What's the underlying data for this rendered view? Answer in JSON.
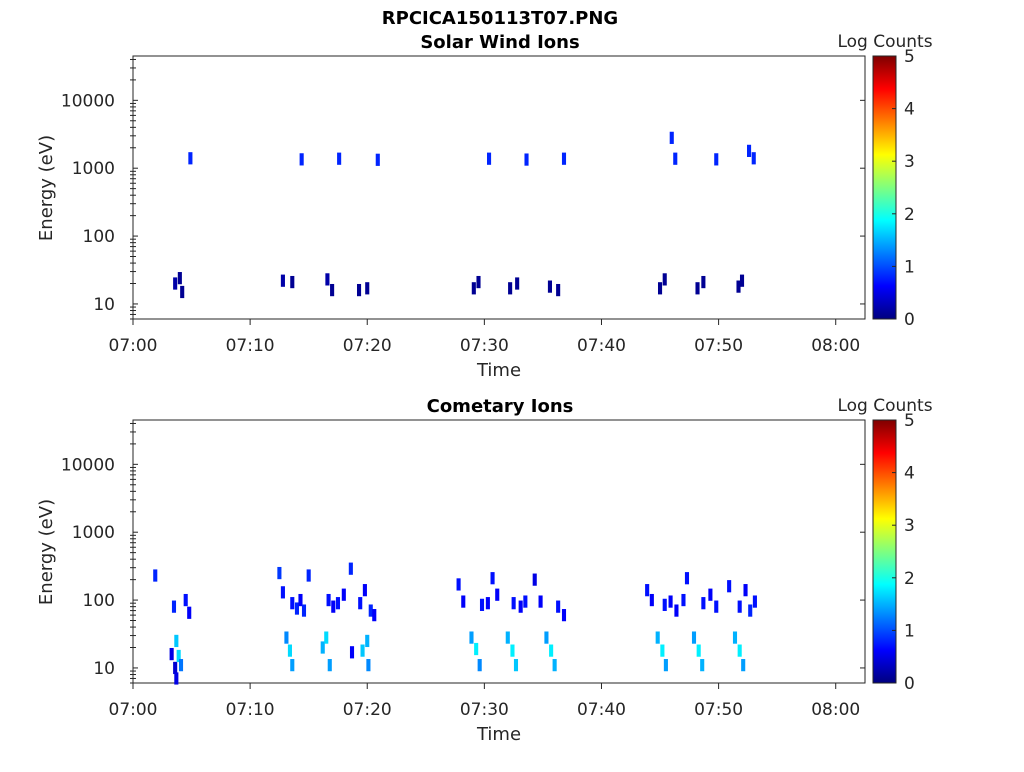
{
  "figure": {
    "title": "RPCICA150113T07.PNG"
  },
  "colormap": {
    "name": "jet",
    "stops": [
      "#00007f",
      "#0000ff",
      "#007fff",
      "#00ffff",
      "#7fff7f",
      "#ffff00",
      "#ff7f00",
      "#ff0000",
      "#7f0000"
    ]
  },
  "chart_data": [
    {
      "type": "heatmap",
      "title": "Solar Wind Ions",
      "xlabel": "Time",
      "ylabel": "Energy (eV)",
      "x_ticks": [
        "07:00",
        "07:10",
        "07:20",
        "07:30",
        "07:40",
        "07:50",
        "08:00"
      ],
      "x_range_minutes": [
        0,
        62.5
      ],
      "y_scale": "log",
      "y_ticks": [
        "10",
        "100",
        "1000",
        "10000"
      ],
      "y_tick_values": [
        10,
        100,
        1000,
        10000
      ],
      "y_range": [
        6,
        45000
      ],
      "colorbar": {
        "label": "Log Counts",
        "ticks": [
          "0",
          "1",
          "2",
          "3",
          "4",
          "5"
        ],
        "range": [
          0,
          5
        ]
      },
      "cells": [
        {
          "t": 3.6,
          "e": 20,
          "v": 0.2
        },
        {
          "t": 4.0,
          "e": 24,
          "v": 0.1
        },
        {
          "t": 4.2,
          "e": 15,
          "v": 0.1
        },
        {
          "t": 4.9,
          "e": 1400,
          "v": 0.8
        },
        {
          "t": 12.8,
          "e": 22,
          "v": 0.2
        },
        {
          "t": 13.6,
          "e": 21,
          "v": 0.1
        },
        {
          "t": 14.4,
          "e": 1350,
          "v": 0.8
        },
        {
          "t": 16.6,
          "e": 23,
          "v": 0.2
        },
        {
          "t": 17.0,
          "e": 16,
          "v": 0.1
        },
        {
          "t": 17.6,
          "e": 1380,
          "v": 0.8
        },
        {
          "t": 19.3,
          "e": 16,
          "v": 0.1
        },
        {
          "t": 20.0,
          "e": 17,
          "v": 0.1
        },
        {
          "t": 20.9,
          "e": 1330,
          "v": 0.8
        },
        {
          "t": 29.1,
          "e": 17,
          "v": 0.1
        },
        {
          "t": 29.5,
          "e": 21,
          "v": 0.1
        },
        {
          "t": 30.4,
          "e": 1380,
          "v": 0.8
        },
        {
          "t": 32.2,
          "e": 17,
          "v": 0.1
        },
        {
          "t": 32.8,
          "e": 20,
          "v": 0.1
        },
        {
          "t": 33.6,
          "e": 1340,
          "v": 0.8
        },
        {
          "t": 35.6,
          "e": 18,
          "v": 0.1
        },
        {
          "t": 36.3,
          "e": 16,
          "v": 0.1
        },
        {
          "t": 36.8,
          "e": 1380,
          "v": 0.8
        },
        {
          "t": 45.0,
          "e": 17,
          "v": 0.1
        },
        {
          "t": 45.4,
          "e": 23,
          "v": 0.1
        },
        {
          "t": 46.0,
          "e": 2800,
          "v": 0.8
        },
        {
          "t": 46.3,
          "e": 1380,
          "v": 0.8
        },
        {
          "t": 48.2,
          "e": 17,
          "v": 0.1
        },
        {
          "t": 48.7,
          "e": 21,
          "v": 0.1
        },
        {
          "t": 49.8,
          "e": 1350,
          "v": 0.8
        },
        {
          "t": 51.7,
          "e": 18,
          "v": 0.1
        },
        {
          "t": 52.0,
          "e": 22,
          "v": 0.1
        },
        {
          "t": 52.6,
          "e": 1800,
          "v": 0.8
        },
        {
          "t": 53.0,
          "e": 1400,
          "v": 0.8
        }
      ]
    },
    {
      "type": "heatmap",
      "title": "Cometary Ions",
      "xlabel": "Time",
      "ylabel": "Energy (eV)",
      "x_ticks": [
        "07:00",
        "07:10",
        "07:20",
        "07:30",
        "07:40",
        "07:50",
        "08:00"
      ],
      "x_range_minutes": [
        0,
        62.5
      ],
      "y_scale": "log",
      "y_ticks": [
        "10",
        "100",
        "1000",
        "10000"
      ],
      "y_tick_values": [
        10,
        100,
        1000,
        10000
      ],
      "y_range": [
        6,
        45000
      ],
      "colorbar": {
        "label": "Log Counts",
        "ticks": [
          "0",
          "1",
          "2",
          "3",
          "4",
          "5"
        ],
        "range": [
          0,
          5
        ]
      },
      "cells": [
        {
          "t": 1.9,
          "e": 230,
          "v": 0.8
        },
        {
          "t": 3.3,
          "e": 16,
          "v": 0.5
        },
        {
          "t": 3.6,
          "e": 10,
          "v": 0.4
        },
        {
          "t": 3.7,
          "e": 25,
          "v": 1.6
        },
        {
          "t": 3.9,
          "e": 15,
          "v": 1.7
        },
        {
          "t": 4.1,
          "e": 11,
          "v": 1.2
        },
        {
          "t": 3.5,
          "e": 80,
          "v": 0.8
        },
        {
          "t": 4.5,
          "e": 100,
          "v": 0.7
        },
        {
          "t": 4.8,
          "e": 65,
          "v": 0.6
        },
        {
          "t": 3.7,
          "e": 7,
          "v": 0.5
        },
        {
          "t": 12.5,
          "e": 250,
          "v": 0.9
        },
        {
          "t": 12.8,
          "e": 130,
          "v": 0.7
        },
        {
          "t": 13.1,
          "e": 28,
          "v": 1.3
        },
        {
          "t": 13.4,
          "e": 18,
          "v": 1.7
        },
        {
          "t": 13.6,
          "e": 11,
          "v": 1.4
        },
        {
          "t": 13.6,
          "e": 90,
          "v": 0.7
        },
        {
          "t": 14.0,
          "e": 75,
          "v": 0.8
        },
        {
          "t": 14.3,
          "e": 100,
          "v": 0.6
        },
        {
          "t": 14.6,
          "e": 70,
          "v": 0.8
        },
        {
          "t": 15.0,
          "e": 230,
          "v": 0.8
        },
        {
          "t": 16.2,
          "e": 20,
          "v": 1.5
        },
        {
          "t": 16.5,
          "e": 28,
          "v": 1.7
        },
        {
          "t": 16.8,
          "e": 11,
          "v": 1.4
        },
        {
          "t": 16.7,
          "e": 100,
          "v": 0.7
        },
        {
          "t": 17.1,
          "e": 80,
          "v": 0.6
        },
        {
          "t": 17.5,
          "e": 90,
          "v": 0.7
        },
        {
          "t": 18.0,
          "e": 120,
          "v": 0.6
        },
        {
          "t": 18.6,
          "e": 290,
          "v": 0.8
        },
        {
          "t": 19.6,
          "e": 18,
          "v": 1.6
        },
        {
          "t": 20.0,
          "e": 25,
          "v": 1.5
        },
        {
          "t": 20.1,
          "e": 11,
          "v": 1.3
        },
        {
          "t": 19.4,
          "e": 90,
          "v": 0.7
        },
        {
          "t": 19.8,
          "e": 140,
          "v": 0.6
        },
        {
          "t": 20.3,
          "e": 70,
          "v": 0.8
        },
        {
          "t": 20.6,
          "e": 60,
          "v": 0.6
        },
        {
          "t": 18.7,
          "e": 17,
          "v": 0.6
        },
        {
          "t": 27.8,
          "e": 170,
          "v": 0.7
        },
        {
          "t": 28.2,
          "e": 95,
          "v": 0.6
        },
        {
          "t": 28.9,
          "e": 28,
          "v": 1.4
        },
        {
          "t": 29.3,
          "e": 19,
          "v": 1.8
        },
        {
          "t": 29.6,
          "e": 11,
          "v": 1.3
        },
        {
          "t": 29.8,
          "e": 85,
          "v": 0.7
        },
        {
          "t": 30.3,
          "e": 90,
          "v": 0.6
        },
        {
          "t": 30.7,
          "e": 210,
          "v": 0.7
        },
        {
          "t": 31.1,
          "e": 120,
          "v": 0.6
        },
        {
          "t": 32.0,
          "e": 28,
          "v": 1.5
        },
        {
          "t": 32.4,
          "e": 18,
          "v": 1.8
        },
        {
          "t": 32.7,
          "e": 11,
          "v": 1.6
        },
        {
          "t": 32.5,
          "e": 90,
          "v": 0.7
        },
        {
          "t": 33.1,
          "e": 80,
          "v": 0.6
        },
        {
          "t": 33.5,
          "e": 95,
          "v": 0.7
        },
        {
          "t": 34.3,
          "e": 200,
          "v": 0.5
        },
        {
          "t": 34.8,
          "e": 95,
          "v": 0.6
        },
        {
          "t": 35.3,
          "e": 28,
          "v": 1.4
        },
        {
          "t": 35.7,
          "e": 18,
          "v": 1.8
        },
        {
          "t": 36.0,
          "e": 11,
          "v": 1.5
        },
        {
          "t": 36.3,
          "e": 80,
          "v": 0.7
        },
        {
          "t": 36.8,
          "e": 60,
          "v": 0.6
        },
        {
          "t": 43.9,
          "e": 140,
          "v": 0.7
        },
        {
          "t": 44.3,
          "e": 100,
          "v": 0.6
        },
        {
          "t": 44.8,
          "e": 28,
          "v": 1.5
        },
        {
          "t": 45.2,
          "e": 18,
          "v": 1.8
        },
        {
          "t": 45.5,
          "e": 11,
          "v": 1.4
        },
        {
          "t": 45.4,
          "e": 85,
          "v": 0.7
        },
        {
          "t": 45.9,
          "e": 95,
          "v": 0.6
        },
        {
          "t": 46.4,
          "e": 70,
          "v": 0.6
        },
        {
          "t": 47.0,
          "e": 100,
          "v": 0.7
        },
        {
          "t": 47.3,
          "e": 210,
          "v": 0.7
        },
        {
          "t": 47.9,
          "e": 28,
          "v": 1.4
        },
        {
          "t": 48.3,
          "e": 18,
          "v": 1.8
        },
        {
          "t": 48.6,
          "e": 11,
          "v": 1.5
        },
        {
          "t": 48.7,
          "e": 90,
          "v": 0.7
        },
        {
          "t": 49.3,
          "e": 120,
          "v": 0.6
        },
        {
          "t": 49.8,
          "e": 80,
          "v": 0.7
        },
        {
          "t": 50.9,
          "e": 160,
          "v": 0.7
        },
        {
          "t": 51.4,
          "e": 28,
          "v": 1.5
        },
        {
          "t": 51.8,
          "e": 18,
          "v": 1.8
        },
        {
          "t": 52.1,
          "e": 11,
          "v": 1.4
        },
        {
          "t": 51.8,
          "e": 80,
          "v": 0.7
        },
        {
          "t": 52.3,
          "e": 140,
          "v": 0.6
        },
        {
          "t": 52.7,
          "e": 70,
          "v": 0.8
        },
        {
          "t": 53.1,
          "e": 95,
          "v": 0.7
        }
      ]
    }
  ]
}
